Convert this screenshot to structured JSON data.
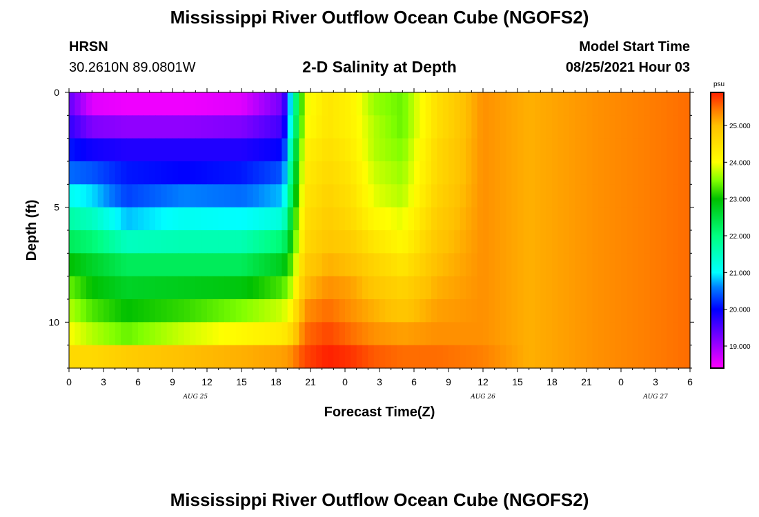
{
  "header": {
    "title": "Mississippi River Outflow Ocean Cube (NGOFS2)",
    "station_name": "HRSN",
    "station_coords": "30.2610N  89.0801W",
    "plot_subtitle": "2-D Salinity at Depth",
    "model_start_label": "Model Start Time",
    "model_start_value": "08/25/2021 Hour 03"
  },
  "footer": {
    "title": "Mississippi River Outflow Ocean Cube (NGOFS2)"
  },
  "chart_data": {
    "type": "heatmap",
    "title": "2-D Salinity at Depth",
    "xlabel": "Forecast Time(Z)",
    "ylabel": "Depth (ft)",
    "x_hours_from_start": [
      0,
      54
    ],
    "x_tick_labels": [
      "0",
      "3",
      "6",
      "9",
      "12",
      "15",
      "18",
      "21",
      "0",
      "3",
      "6",
      "9",
      "12",
      "15",
      "18",
      "21",
      "0",
      "3",
      "6"
    ],
    "date_labels": [
      {
        "label": "AUG 25",
        "at_hour": 11
      },
      {
        "label": "AUG 26",
        "at_hour": 36
      },
      {
        "label": "AUG 27",
        "at_hour": 51
      }
    ],
    "y_range_ft": [
      0,
      12
    ],
    "y_tick_values": [
      0,
      5,
      10
    ],
    "colorbar": {
      "units": "psu",
      "range": [
        18.4,
        25.9
      ],
      "ticks": [
        "19.000",
        "20.000",
        "21.000",
        "22.000",
        "23.000",
        "24.000",
        "25.000"
      ],
      "stops": [
        {
          "v": 18.4,
          "c": "#ff00ff"
        },
        {
          "v": 19.2,
          "c": "#8000ff"
        },
        {
          "v": 20.0,
          "c": "#0000ff"
        },
        {
          "v": 20.6,
          "c": "#0080ff"
        },
        {
          "v": 21.0,
          "c": "#00ffff"
        },
        {
          "v": 22.0,
          "c": "#00ff80"
        },
        {
          "v": 23.0,
          "c": "#00c000"
        },
        {
          "v": 23.5,
          "c": "#80ff00"
        },
        {
          "v": 24.0,
          "c": "#ffff00"
        },
        {
          "v": 25.0,
          "c": "#ffc000"
        },
        {
          "v": 25.4,
          "c": "#ff8000"
        },
        {
          "v": 25.9,
          "c": "#ff2000"
        }
      ]
    },
    "depth_layers_ft": [
      0.5,
      1.5,
      2.5,
      3.5,
      4.5,
      5.5,
      6.5,
      7.5,
      8.5,
      9.5,
      10.5,
      11.5
    ],
    "salinity_profile_by_hour": [
      {
        "h": 0,
        "z": [
          19.4,
          19.7,
          20.1,
          20.5,
          21.1,
          21.7,
          22.3,
          23.0,
          23.4,
          23.7,
          24.0,
          24.6
        ]
      },
      {
        "h": 2,
        "z": [
          18.6,
          19.2,
          19.9,
          20.4,
          20.9,
          21.5,
          22.1,
          22.7,
          23.0,
          23.3,
          23.7,
          24.6
        ]
      },
      {
        "h": 5,
        "z": [
          18.5,
          19.1,
          19.8,
          20.1,
          20.3,
          20.8,
          21.5,
          22.3,
          22.7,
          23.0,
          23.4,
          24.8
        ]
      },
      {
        "h": 10,
        "z": [
          18.5,
          19.1,
          19.8,
          20.0,
          20.6,
          21.1,
          21.6,
          22.3,
          22.8,
          23.2,
          23.8,
          25.0
        ]
      },
      {
        "h": 15,
        "z": [
          18.6,
          19.2,
          19.8,
          20.1,
          20.5,
          21.0,
          21.6,
          22.3,
          22.9,
          23.5,
          24.1,
          25.1
        ]
      },
      {
        "h": 18.6,
        "z": [
          19.3,
          19.6,
          20.0,
          20.4,
          20.8,
          21.3,
          22.1,
          22.8,
          23.3,
          23.8,
          24.3,
          25.2
        ]
      },
      {
        "h": 19.3,
        "z": [
          21.0,
          21.2,
          21.6,
          21.9,
          22.2,
          22.6,
          22.9,
          23.3,
          23.7,
          24.1,
          24.6,
          25.3
        ]
      },
      {
        "h": 20.5,
        "z": [
          23.9,
          24.0,
          24.2,
          24.3,
          24.4,
          24.5,
          24.6,
          24.8,
          25.0,
          25.3,
          25.5,
          25.7
        ]
      },
      {
        "h": 22.5,
        "z": [
          24.4,
          24.4,
          24.5,
          24.6,
          24.7,
          24.8,
          24.9,
          25.1,
          25.3,
          25.5,
          25.7,
          25.9
        ]
      },
      {
        "h": 24.5,
        "z": [
          24.2,
          24.2,
          24.3,
          24.4,
          24.5,
          24.6,
          24.8,
          25.0,
          25.2,
          25.3,
          25.5,
          25.8
        ]
      },
      {
        "h": 26.5,
        "z": [
          23.6,
          23.7,
          23.7,
          23.8,
          23.9,
          24.1,
          24.4,
          24.7,
          24.9,
          25.1,
          25.3,
          25.6
        ]
      },
      {
        "h": 29,
        "z": [
          23.4,
          23.4,
          23.5,
          23.6,
          23.7,
          23.9,
          24.1,
          24.4,
          24.7,
          24.9,
          25.2,
          25.5
        ]
      },
      {
        "h": 32,
        "z": [
          24.5,
          24.5,
          24.6,
          24.6,
          24.7,
          24.8,
          24.9,
          25.0,
          25.1,
          25.2,
          25.3,
          25.5
        ]
      },
      {
        "h": 36,
        "z": [
          25.3,
          25.3,
          25.3,
          25.3,
          25.3,
          25.3,
          25.3,
          25.3,
          25.3,
          25.3,
          25.3,
          25.4
        ]
      },
      {
        "h": 40,
        "z": [
          25.1,
          25.1,
          25.1,
          25.1,
          25.1,
          25.1,
          25.1,
          25.1,
          25.1,
          25.1,
          25.1,
          25.1
        ]
      },
      {
        "h": 46,
        "z": [
          25.3,
          25.3,
          25.3,
          25.3,
          25.3,
          25.3,
          25.3,
          25.3,
          25.3,
          25.3,
          25.3,
          25.3
        ]
      },
      {
        "h": 54,
        "z": [
          25.5,
          25.5,
          25.5,
          25.5,
          25.5,
          25.5,
          25.5,
          25.5,
          25.5,
          25.5,
          25.5,
          25.5
        ]
      }
    ]
  }
}
